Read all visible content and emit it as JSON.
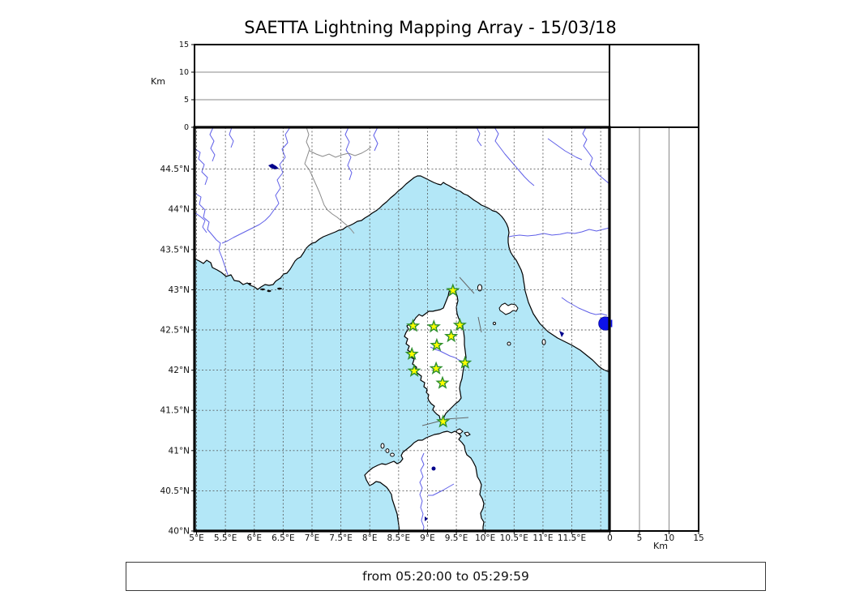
{
  "title": "SAETTA Lightning Mapping Array - 15/03/18",
  "footer": {
    "text": "from 05:20:00 to 05:29:59"
  },
  "axes": {
    "top_altitude": {
      "unit_label": "Km",
      "tick_labels": [
        "0",
        "5",
        "10",
        "15"
      ],
      "tick_values": [
        0,
        5,
        10,
        15
      ],
      "range_km": [
        0,
        15
      ],
      "gridlines_km": [
        5,
        10
      ]
    },
    "right_altitude": {
      "unit_label": "Km",
      "tick_labels": [
        "0",
        "5",
        "10",
        "15"
      ],
      "tick_values": [
        0,
        5,
        10,
        15
      ],
      "range_km": [
        0,
        15
      ],
      "gridlines_km": [
        5,
        10
      ]
    },
    "longitude": {
      "tick_labels": [
        "5°E",
        "5.5°E",
        "6°E",
        "6.5°E",
        "7°E",
        "7.5°E",
        "8°E",
        "8.5°E",
        "9°E",
        "9.5°E",
        "10°E",
        "10.5°E",
        "11°E",
        "11.5°E"
      ],
      "tick_values": [
        5,
        5.5,
        6,
        6.5,
        7,
        7.5,
        8,
        8.5,
        9,
        9.5,
        10,
        10.5,
        11,
        11.5
      ],
      "gridline_values": [
        5,
        5.5,
        6,
        6.5,
        7,
        7.5,
        8,
        8.5,
        9,
        9.5,
        10,
        10.5,
        11,
        11.5,
        12
      ],
      "range_deg": [
        4.97,
        12.19
      ]
    },
    "latitude": {
      "tick_labels": [
        "40°N",
        "40.5°N",
        "41°N",
        "41.5°N",
        "42°N",
        "42.5°N",
        "43°N",
        "43.5°N",
        "44°N",
        "44.5°N"
      ],
      "tick_values": [
        40,
        40.5,
        41,
        41.5,
        42,
        42.5,
        43,
        43.5,
        44,
        44.5
      ],
      "gridline_values": [
        40.5,
        41,
        41.5,
        42,
        42.5,
        43,
        43.5,
        44,
        44.5
      ],
      "range_deg": [
        40,
        45.02
      ]
    }
  },
  "chart_data": {
    "type": "scatter",
    "title": "SAETTA Lightning Mapping Array - 15/03/18",
    "time_window": "from 05:20:00 to 05:29:59",
    "projection": "longitude-latitude map (Corsica region) with altitude side panels in Km",
    "legend_position": "none",
    "grid": true,
    "stations_lon_lat": [
      [
        9.44,
        42.99
      ],
      [
        8.75,
        42.55
      ],
      [
        9.11,
        42.54
      ],
      [
        9.56,
        42.56
      ],
      [
        9.41,
        42.42
      ],
      [
        9.16,
        42.31
      ],
      [
        8.73,
        42.2
      ],
      [
        9.65,
        42.09
      ],
      [
        9.15,
        42.02
      ],
      [
        8.77,
        41.99
      ],
      [
        9.26,
        41.84
      ],
      [
        9.27,
        41.36
      ]
    ],
    "lightning_sources": [
      {
        "lon": 12.08,
        "lat": 42.58,
        "color": "#0d12e8"
      }
    ]
  },
  "colors": {
    "sea": "#b3e7f7",
    "land": "#ffffff",
    "coast": "#000000",
    "river": "#5f5fe8",
    "lake": "#00008b",
    "grid": "#555555",
    "station_fill": "#ffff00",
    "station_edge": "#2d8f2d",
    "lightning": "#0d12e8"
  }
}
